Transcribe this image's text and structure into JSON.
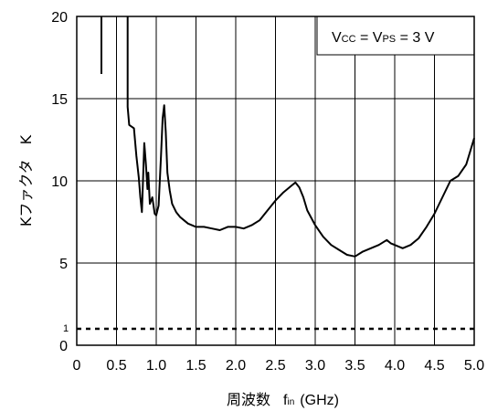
{
  "chart_data": {
    "type": "line",
    "title": "",
    "xlabel_main": "周波数",
    "xlabel_sym": "f",
    "xlabel_sub": "in",
    "xlabel_unit": "(GHz)",
    "ylabel": "Kファクタ　K",
    "xlim": [
      0,
      5.0
    ],
    "ylim": [
      0,
      20
    ],
    "x_ticks": [
      "0",
      "0.5",
      "1.0",
      "1.5",
      "2.0",
      "2.5",
      "3.0",
      "3.5",
      "4.0",
      "4.5",
      "5.0"
    ],
    "y_ticks": [
      "0",
      "5",
      "10",
      "15",
      "20"
    ],
    "grid": true,
    "annotation": {
      "v1": "V",
      "v1_sub": "CC",
      "eq1": " = V",
      "v2_sub": "PS",
      "eq2": " = 3 V"
    },
    "reference_line": {
      "y": 1,
      "label": "1",
      "style": "dotted"
    },
    "series": [
      {
        "values": [
          [
            0.31,
            20
          ],
          [
            0.31,
            16.5
          ],
          [
            0.64,
            20
          ],
          [
            0.64,
            14.5
          ],
          [
            0.66,
            13.4
          ],
          [
            0.72,
            13.2
          ],
          [
            0.75,
            11.5
          ],
          [
            0.78,
            10.2
          ],
          [
            0.8,
            9.0
          ],
          [
            0.82,
            8.1
          ],
          [
            0.83,
            9.5
          ],
          [
            0.85,
            12.3
          ],
          [
            0.87,
            11.0
          ],
          [
            0.89,
            9.5
          ],
          [
            0.9,
            10.5
          ],
          [
            0.92,
            8.6
          ],
          [
            0.95,
            9.0
          ],
          [
            0.98,
            8.0
          ],
          [
            1.0,
            7.9
          ],
          [
            1.03,
            8.5
          ],
          [
            1.06,
            11.5
          ],
          [
            1.08,
            13.8
          ],
          [
            1.1,
            14.6
          ],
          [
            1.12,
            13.0
          ],
          [
            1.14,
            10.5
          ],
          [
            1.17,
            9.4
          ],
          [
            1.2,
            8.6
          ],
          [
            1.25,
            8.1
          ],
          [
            1.3,
            7.8
          ],
          [
            1.35,
            7.6
          ],
          [
            1.4,
            7.4
          ],
          [
            1.5,
            7.2
          ],
          [
            1.6,
            7.2
          ],
          [
            1.7,
            7.1
          ],
          [
            1.8,
            7.0
          ],
          [
            1.9,
            7.2
          ],
          [
            2.0,
            7.2
          ],
          [
            2.1,
            7.1
          ],
          [
            2.2,
            7.3
          ],
          [
            2.3,
            7.6
          ],
          [
            2.4,
            8.2
          ],
          [
            2.5,
            8.8
          ],
          [
            2.6,
            9.3
          ],
          [
            2.7,
            9.7
          ],
          [
            2.75,
            9.9
          ],
          [
            2.8,
            9.6
          ],
          [
            2.85,
            9.0
          ],
          [
            2.9,
            8.2
          ],
          [
            3.0,
            7.3
          ],
          [
            3.1,
            6.6
          ],
          [
            3.2,
            6.1
          ],
          [
            3.3,
            5.8
          ],
          [
            3.4,
            5.5
          ],
          [
            3.5,
            5.4
          ],
          [
            3.6,
            5.7
          ],
          [
            3.7,
            5.9
          ],
          [
            3.8,
            6.1
          ],
          [
            3.9,
            6.4
          ],
          [
            3.95,
            6.2
          ],
          [
            4.0,
            6.1
          ],
          [
            4.1,
            5.9
          ],
          [
            4.2,
            6.1
          ],
          [
            4.3,
            6.5
          ],
          [
            4.4,
            7.2
          ],
          [
            4.5,
            8.0
          ],
          [
            4.6,
            9.0
          ],
          [
            4.7,
            10.0
          ],
          [
            4.8,
            10.3
          ],
          [
            4.9,
            11.0
          ],
          [
            5.0,
            12.6
          ]
        ]
      }
    ]
  }
}
